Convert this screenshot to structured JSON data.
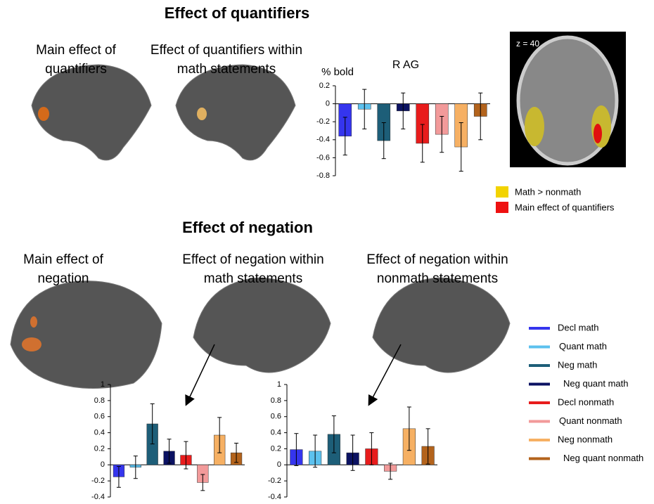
{
  "figure": {
    "heading_top": "Effect of quantifiers",
    "heading_bottom": "Effect of negation",
    "panel_labels": [
      [
        "Main effect of",
        "quantifiers"
      ],
      [
        "Effect of quantifiers within",
        "math statements"
      ],
      [
        "Main effect of",
        "negation"
      ],
      [
        "Effect of negation within",
        "math statements"
      ],
      [
        "Effect of negation within",
        "nonmath statements"
      ]
    ],
    "slice_label": "z = 40",
    "map_legend": [
      {
        "name": "Math > nonmath",
        "color": "#f2d300"
      },
      {
        "name": "Main effect of quantifiers",
        "color": "#ee1111"
      }
    ]
  },
  "chart_data": [
    {
      "type": "bar",
      "title": "R AG",
      "ylabel": "% bold",
      "categories": [
        "Decl math",
        "Quant math",
        "Neg math",
        "Neg quant math",
        "Decl nonmath",
        "Quant nonmath",
        "Neg nonmath",
        "Neg quant nonmath"
      ],
      "colors": [
        "#3535ee",
        "#5cc1ee",
        "#1d5e78",
        "#0b1262",
        "#e81c1c",
        "#f29a9a",
        "#f6b063",
        "#b3631c"
      ],
      "values": [
        -0.36,
        -0.06,
        -0.41,
        -0.08,
        -0.44,
        -0.34,
        -0.48,
        -0.14
      ],
      "errors": [
        0.21,
        0.22,
        0.2,
        0.2,
        0.21,
        0.2,
        0.27,
        0.26
      ],
      "ylim": [
        -0.8,
        0.2
      ],
      "yticks": [
        0.2,
        0,
        -0.2,
        -0.4,
        -0.6,
        -0.8
      ]
    },
    {
      "type": "bar",
      "values": [
        -0.15,
        -0.03,
        0.51,
        0.17,
        0.12,
        -0.22,
        0.37,
        0.15
      ],
      "errors": [
        0.13,
        0.14,
        0.25,
        0.15,
        0.17,
        0.1,
        0.22,
        0.12
      ],
      "ylim": [
        -0.4,
        1
      ],
      "yticks": [
        1,
        0.8,
        0.6,
        0.4,
        0.2,
        0,
        -0.2,
        -0.4
      ]
    },
    {
      "type": "bar",
      "values": [
        0.19,
        0.17,
        0.38,
        0.15,
        0.2,
        -0.08,
        0.45,
        0.23
      ],
      "errors": [
        0.2,
        0.2,
        0.23,
        0.22,
        0.2,
        0.1,
        0.27,
        0.22
      ],
      "ylim": [
        -0.4,
        1
      ],
      "yticks": [
        1,
        0.8,
        0.6,
        0.4,
        0.2,
        0,
        -0.2,
        -0.4
      ]
    }
  ]
}
